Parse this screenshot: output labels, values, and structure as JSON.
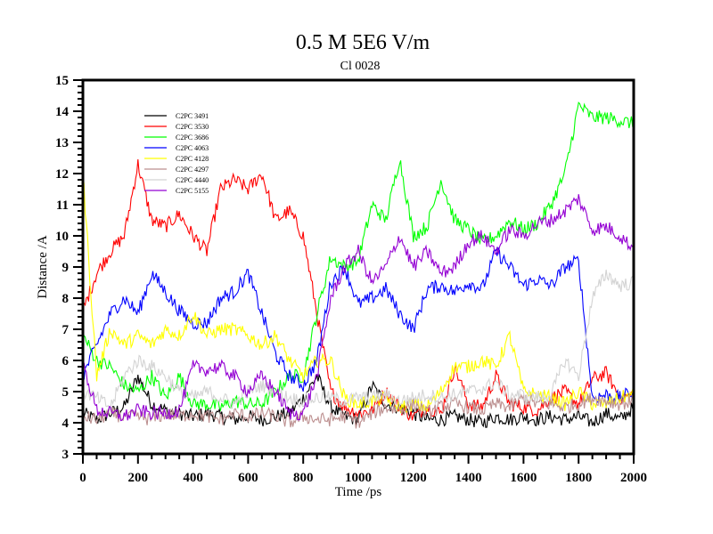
{
  "chart_data": {
    "type": "line",
    "title": "0.5 M 5E6 V/m",
    "subtitle": "Cl 0028",
    "xlabel": "Time /ps",
    "ylabel": "Distance /A",
    "xlim": [
      0,
      2000
    ],
    "ylim": [
      3,
      15
    ],
    "x_ticks": [
      "0",
      "200",
      "400",
      "600",
      "800",
      "1000",
      "1200",
      "1400",
      "1600",
      "1800",
      "2000"
    ],
    "y_ticks": [
      "3",
      "4",
      "5",
      "6",
      "7",
      "8",
      "9",
      "10",
      "11",
      "12",
      "13",
      "14",
      "15"
    ],
    "grid": false,
    "legend_position": "top-left",
    "x": [
      0,
      50,
      100,
      150,
      200,
      250,
      300,
      350,
      400,
      450,
      500,
      550,
      600,
      650,
      700,
      750,
      800,
      850,
      900,
      950,
      1000,
      1050,
      1100,
      1150,
      1200,
      1250,
      1300,
      1350,
      1400,
      1450,
      1500,
      1550,
      1600,
      1650,
      1700,
      1750,
      1800,
      1850,
      1900,
      1950,
      2000
    ],
    "series": [
      {
        "name": "C2PC 3491",
        "color": "#000000",
        "values": [
          4.3,
          4.1,
          4.3,
          4.5,
          5.5,
          4.6,
          4.4,
          4.3,
          4.2,
          4.3,
          4.2,
          4.1,
          4.2,
          4.1,
          4.2,
          4.3,
          4.8,
          5.5,
          4.5,
          4.2,
          4.1,
          5.2,
          4.6,
          4.5,
          4.3,
          4.1,
          4.1,
          4.2,
          4.1,
          4.0,
          4.2,
          4.1,
          4.2,
          4.1,
          4.2,
          4.1,
          4.2,
          4.0,
          4.3,
          4.1,
          4.5
        ]
      },
      {
        "name": "C2PC 3530",
        "color": "#ff0000",
        "values": [
          7.6,
          8.8,
          9.5,
          10.0,
          12.3,
          10.5,
          10.3,
          10.7,
          10.0,
          9.5,
          11.5,
          11.8,
          11.5,
          12.0,
          10.5,
          10.8,
          10.0,
          7.5,
          5.0,
          4.5,
          4.3,
          4.4,
          5.0,
          4.5,
          4.2,
          4.5,
          4.3,
          5.8,
          4.6,
          4.5,
          5.5,
          4.6,
          4.5,
          4.4,
          4.8,
          5.0,
          4.6,
          5.4,
          5.6,
          4.8,
          4.9
        ]
      },
      {
        "name": "C2PC 3686",
        "color": "#00ff00",
        "values": [
          6.8,
          6.0,
          5.8,
          5.2,
          5.0,
          5.5,
          4.8,
          5.5,
          4.6,
          4.6,
          4.5,
          4.7,
          4.6,
          4.6,
          5.0,
          5.5,
          5.5,
          7.5,
          9.3,
          9.0,
          9.2,
          11.0,
          10.5,
          12.5,
          10.0,
          10.3,
          11.8,
          10.5,
          10.2,
          9.8,
          10.0,
          10.5,
          10.2,
          10.4,
          11.0,
          12.0,
          14.2,
          13.8,
          13.8,
          13.7,
          13.6
        ]
      },
      {
        "name": "C2PC 4063",
        "color": "#0000ff",
        "values": [
          5.5,
          6.5,
          7.5,
          8.0,
          7.5,
          8.8,
          8.2,
          7.6,
          7.2,
          7.2,
          8.0,
          8.2,
          8.8,
          7.5,
          6.2,
          5.5,
          5.2,
          6.0,
          8.5,
          9.0,
          7.8,
          8.0,
          8.3,
          7.5,
          7.0,
          8.3,
          8.4,
          8.2,
          8.5,
          8.3,
          9.5,
          9.0,
          8.4,
          8.6,
          8.4,
          9.0,
          9.2,
          4.8,
          4.9,
          4.8,
          5.0
        ]
      },
      {
        "name": "C2PC 4128",
        "color": "#ffff00",
        "values": [
          12.0,
          5.5,
          7.0,
          6.5,
          6.8,
          6.5,
          7.0,
          6.8,
          7.5,
          6.8,
          7.0,
          7.0,
          6.8,
          6.5,
          6.8,
          6.0,
          5.5,
          6.0,
          6.0,
          4.8,
          4.6,
          4.7,
          4.8,
          4.5,
          4.6,
          4.5,
          5.0,
          5.8,
          5.8,
          6.0,
          5.8,
          6.8,
          5.0,
          4.9,
          4.8,
          4.6,
          5.0,
          4.6,
          4.6,
          4.8,
          4.9
        ]
      },
      {
        "name": "C2PC 4297",
        "color": "#bc8f8f",
        "values": [
          4.2,
          4.1,
          4.3,
          4.2,
          4.2,
          4.1,
          4.3,
          4.2,
          4.3,
          4.2,
          4.1,
          4.3,
          4.2,
          4.3,
          4.2,
          4.0,
          4.2,
          4.1,
          4.1,
          4.2,
          4.0,
          4.3,
          4.5,
          4.4,
          4.6,
          4.3,
          4.5,
          4.6,
          4.5,
          4.4,
          4.6,
          4.5,
          4.8,
          4.6,
          4.6,
          4.5,
          4.6,
          4.8,
          4.7,
          4.6,
          4.7
        ]
      },
      {
        "name": "C2PC 4440",
        "color": "#d3d3d3",
        "values": [
          5.0,
          4.8,
          4.5,
          5.5,
          6.0,
          5.8,
          5.5,
          5.0,
          4.8,
          5.0,
          4.8,
          4.6,
          5.0,
          5.2,
          5.0,
          4.8,
          4.7,
          4.8,
          4.8,
          4.7,
          4.8,
          4.8,
          4.9,
          4.7,
          4.8,
          4.9,
          4.8,
          4.9,
          5.0,
          5.1,
          5.3,
          4.9,
          4.9,
          4.8,
          4.9,
          6.0,
          5.5,
          8.0,
          8.8,
          8.4,
          8.5
        ]
      },
      {
        "name": "C2PC 5155",
        "color": "#9400d3",
        "values": [
          5.9,
          4.4,
          4.3,
          4.2,
          4.4,
          4.3,
          4.3,
          4.4,
          5.8,
          5.7,
          5.8,
          5.5,
          5.0,
          5.5,
          5.0,
          4.3,
          4.3,
          5.5,
          8.0,
          9.0,
          9.5,
          8.5,
          9.0,
          10.0,
          9.0,
          9.5,
          8.8,
          9.0,
          9.8,
          10.0,
          9.5,
          10.2,
          10.0,
          10.4,
          10.5,
          10.8,
          11.2,
          10.2,
          10.3,
          10.0,
          9.6
        ]
      }
    ]
  }
}
